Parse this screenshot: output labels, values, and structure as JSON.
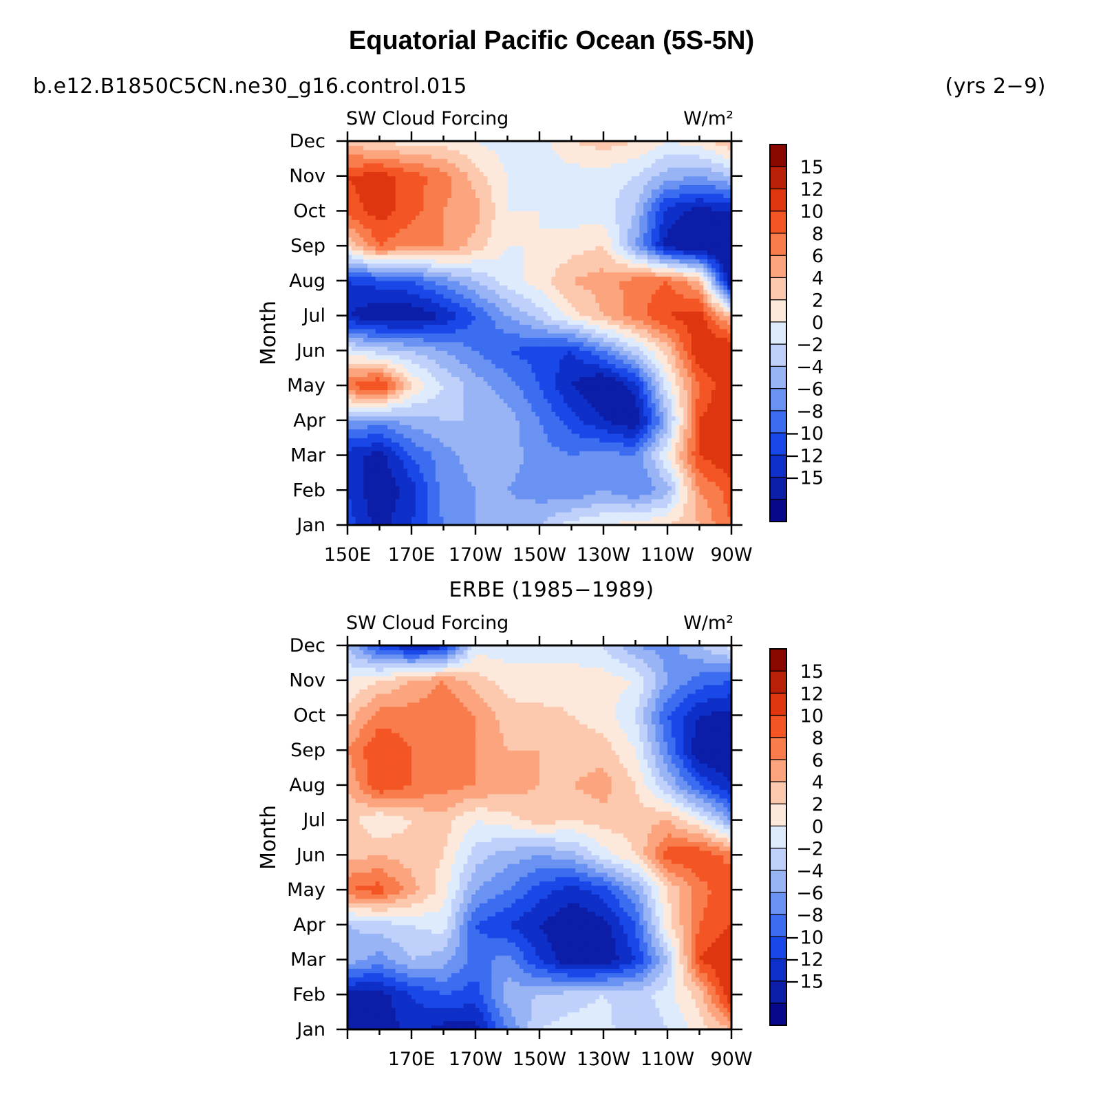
{
  "title": "Equatorial Pacific Ocean (5S-5N)",
  "case_name": "b.e12.B1850C5CN.ne30_g16.control.015",
  "years": "(yrs 2−9)",
  "colormap": [
    "#08088a",
    "#0c1ea8",
    "#0e2fc8",
    "#1a48e8",
    "#3c6cf0",
    "#6a92f2",
    "#98b4f5",
    "#bfd0fb",
    "#deebfd",
    "#fde9dc",
    "#fcc8ae",
    "#fba47e",
    "#f97c4c",
    "#f45524",
    "#de370f",
    "#b82008",
    "#890800"
  ],
  "colorbar_levels": [
    "15",
    "12",
    "10",
    "8",
    "6",
    "4",
    "2",
    "0",
    "−2",
    "−4",
    "−6",
    "−8",
    "−10",
    "−12",
    "−15"
  ],
  "chart_data": [
    {
      "type": "heatmap",
      "panel_title": "",
      "left_label": "SW Cloud Forcing",
      "right_label": "W/m²",
      "ylabel": "Month",
      "x_ticks": [
        "150E",
        "170E",
        "170W",
        "150W",
        "130W",
        "110W",
        "90W"
      ],
      "y_ticks": [
        "Jan",
        "Feb",
        "Mar",
        "Apr",
        "May",
        "Jun",
        "Jul",
        "Aug",
        "Sep",
        "Oct",
        "Nov",
        "Dec"
      ],
      "x_columns": [
        "150E",
        "160E",
        "170E",
        "180",
        "170W",
        "160W",
        "150W",
        "140W",
        "130W",
        "120W",
        "110W",
        "100W",
        "90W"
      ],
      "z": [
        [
          -9,
          -13,
          -10,
          -6,
          -4,
          -3,
          -2,
          1,
          2,
          3,
          4,
          6,
          10
        ],
        [
          -10,
          -14,
          -11,
          -5,
          -4,
          -4,
          -5,
          -6,
          -4,
          -6,
          -3,
          8,
          11
        ],
        [
          -11,
          -13,
          -8,
          -5,
          -3,
          -3,
          -5,
          -6,
          -5,
          -6,
          2,
          12,
          14
        ],
        [
          -4,
          -5,
          -3,
          -2,
          -2,
          -3,
          -6,
          -9,
          -12,
          -14,
          -3,
          12,
          15
        ],
        [
          10,
          13,
          4,
          0,
          -3,
          -5,
          -8,
          -12,
          -15,
          -11,
          1,
          10,
          14
        ],
        [
          1,
          -1,
          -2,
          -4,
          -6,
          -8,
          -9,
          -10,
          -6,
          -1,
          5,
          14,
          15
        ],
        [
          -12,
          -14,
          -14,
          -12,
          -8,
          -4,
          -1,
          3,
          6,
          9,
          12,
          13,
          5
        ],
        [
          -10,
          -9,
          -8,
          -5,
          -2,
          1,
          3,
          6,
          7,
          9,
          10,
          6,
          -15
        ],
        [
          4,
          10,
          8,
          8,
          5,
          2,
          2,
          3,
          4,
          -4,
          -13,
          -15,
          -15
        ],
        [
          11,
          13,
          11,
          8,
          7,
          2,
          2,
          1,
          1,
          -2,
          -11,
          -13,
          -12
        ],
        [
          12,
          13,
          11,
          9,
          5,
          2,
          1,
          1,
          1,
          0,
          -3,
          -4,
          -2
        ],
        [
          5,
          4,
          3,
          3,
          2,
          1,
          1,
          4,
          5,
          4,
          2,
          3,
          6
        ]
      ]
    },
    {
      "type": "heatmap",
      "panel_title": "ERBE (1985−1989)",
      "left_label": "SW Cloud Forcing",
      "right_label": "W/m²",
      "ylabel": "Month",
      "x_ticks": [
        "170E",
        "170W",
        "150W",
        "130W",
        "110W",
        "90W"
      ],
      "y_ticks": [
        "Jan",
        "Feb",
        "Mar",
        "Apr",
        "May",
        "Jun",
        "Jul",
        "Aug",
        "Sep",
        "Oct",
        "Nov",
        "Dec"
      ],
      "x_columns": [
        "150E",
        "160E",
        "170E",
        "180",
        "170W",
        "160W",
        "150W",
        "140W",
        "130W",
        "120W",
        "110W",
        "100W",
        "90W"
      ],
      "z": [
        [
          -12,
          -14,
          -11,
          -13,
          -13,
          -6,
          0,
          1,
          1,
          -2,
          0,
          3,
          6
        ],
        [
          -13,
          -13,
          -10,
          -8,
          -9,
          -3,
          -2,
          -1,
          0,
          -1,
          1,
          5,
          14
        ],
        [
          -3,
          -5,
          -2,
          -3,
          -7,
          -5,
          -10,
          -14,
          -14,
          -10,
          -2,
          12,
          15
        ],
        [
          -2,
          -1,
          0,
          1,
          -8,
          -10,
          -12,
          -14,
          -13,
          -8,
          3,
          10,
          12
        ],
        [
          10,
          11,
          7,
          3,
          -4,
          -6,
          -9,
          -11,
          -9,
          -4,
          4,
          9,
          12
        ],
        [
          5,
          6,
          5,
          4,
          -1,
          -3,
          -4,
          -3,
          1,
          4,
          11,
          12,
          9
        ],
        [
          5,
          2,
          4,
          5,
          2,
          3,
          5,
          4,
          5,
          5,
          6,
          2,
          -4
        ],
        [
          6,
          12,
          10,
          9,
          8,
          7,
          6,
          6,
          7,
          4,
          -2,
          -8,
          -12
        ],
        [
          8,
          12,
          10,
          9,
          8,
          6,
          6,
          5,
          5,
          2,
          -6,
          -14,
          -15
        ],
        [
          5,
          9,
          9,
          10,
          8,
          5,
          5,
          4,
          3,
          0,
          -8,
          -12,
          -13
        ],
        [
          2,
          4,
          6,
          8,
          5,
          3,
          2,
          3,
          3,
          2,
          -4,
          -7,
          -8
        ],
        [
          -2,
          -9,
          -12,
          -11,
          1,
          1,
          2,
          1,
          0,
          -4,
          -5,
          -2,
          1
        ]
      ]
    }
  ]
}
